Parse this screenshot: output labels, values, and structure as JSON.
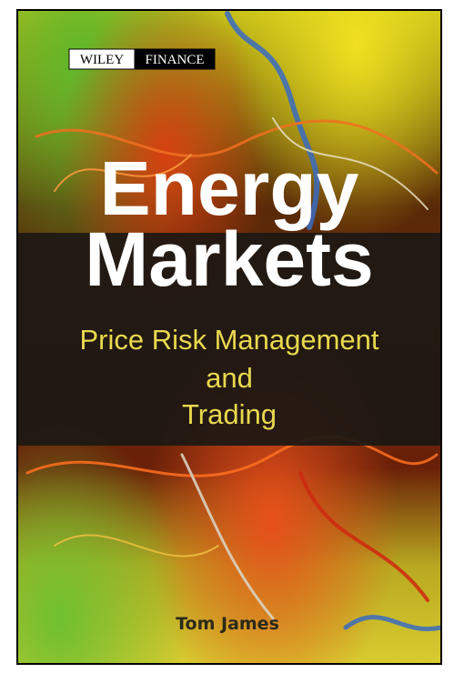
{
  "cover": {
    "publisher": {
      "imprint": "WILEY",
      "series": "FINANCE"
    },
    "title": [
      "Energy",
      "Markets"
    ],
    "subtitle": [
      "Price Risk Management",
      "and",
      "Trading"
    ],
    "author": "Tom James"
  }
}
